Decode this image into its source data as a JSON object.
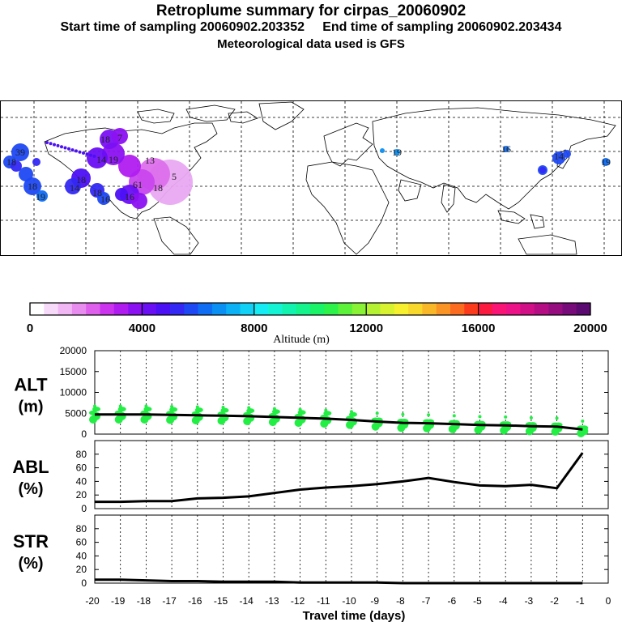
{
  "header": {
    "title": "Retroplume summary for cirpas_20060902",
    "times": "Start time of sampling 20060902.203352     End time of sampling 20060902.203434",
    "met": "Meteorological data used is GFS"
  },
  "colorbar": {
    "ticks": [
      "0",
      "4000",
      "8000",
      "12000",
      "16000",
      "20000"
    ],
    "label": "Altitude (m)",
    "colors": [
      "#ffffff",
      "#f7d9f9",
      "#f1b6f4",
      "#e88cf0",
      "#dd5fec",
      "#cc33ee",
      "#b01cf0",
      "#8c11f2",
      "#6a0ef4",
      "#4c10f5",
      "#3328f4",
      "#1e48f3",
      "#0e6df2",
      "#0a8ff3",
      "#0bb1f4",
      "#11d2f6",
      "#16ecf4",
      "#14f4d4",
      "#12f3b0",
      "#14f38c",
      "#1af268",
      "#2df24a",
      "#5cf23a",
      "#8af235",
      "#b4f232",
      "#d8f230",
      "#f6f02e",
      "#f8d82b",
      "#f9b828",
      "#fa9424",
      "#fb6c20",
      "#fc3a1c",
      "#fb1a40",
      "#fa1476",
      "#ec1287",
      "#d10f86",
      "#b50e84",
      "#960d80",
      "#770b7a",
      "#5a0a70"
    ]
  },
  "map": {
    "labels": [
      "39",
      "18",
      "18",
      "7",
      "18",
      "13",
      "61",
      "5",
      "18",
      "14",
      "18",
      "14",
      "19",
      "18",
      "19",
      "16",
      "16",
      "19",
      "19",
      "14",
      "16"
    ]
  },
  "chart_data": [
    {
      "type": "line",
      "name": "ALT",
      "ylabel": "ALT",
      "yunit": "(m)",
      "ylim": [
        0,
        20000
      ],
      "yticks": [
        "20000",
        "15000",
        "10000",
        "5000",
        "0"
      ],
      "x": [
        -20,
        -19,
        -18,
        -17,
        -16,
        -15,
        -14,
        -13,
        -12,
        -11,
        -10,
        -9,
        -8,
        -7,
        -6,
        -5,
        -4,
        -3,
        -2,
        -1
      ],
      "values": [
        4700,
        4700,
        4700,
        4600,
        4500,
        4400,
        4300,
        4100,
        3900,
        3700,
        3400,
        3000,
        2700,
        2600,
        2400,
        2200,
        2100,
        1900,
        1800,
        1100
      ],
      "scatter_color": "#22ee44"
    },
    {
      "type": "line",
      "name": "ABL",
      "ylabel": "ABL",
      "yunit": "(%)",
      "ylim": [
        0,
        100
      ],
      "yticks": [
        "80",
        "60",
        "40",
        "20",
        "0"
      ],
      "x": [
        -20,
        -19,
        -18,
        -17,
        -16,
        -15,
        -14,
        -13,
        -12,
        -11,
        -10,
        -9,
        -8,
        -7,
        -6,
        -5,
        -4,
        -3,
        -2,
        -1
      ],
      "values": [
        10,
        10,
        11,
        11,
        15,
        16,
        18,
        23,
        28,
        31,
        33,
        36,
        40,
        45,
        39,
        34,
        33,
        35,
        30,
        82
      ]
    },
    {
      "type": "line",
      "name": "STR",
      "ylabel": "STR",
      "yunit": "(%)",
      "ylim": [
        0,
        100
      ],
      "yticks": [
        "80",
        "60",
        "40",
        "20",
        "0"
      ],
      "x": [
        -20,
        -19,
        -18,
        -17,
        -16,
        -15,
        -14,
        -13,
        -12,
        -11,
        -10,
        -9,
        -8,
        -7,
        -6,
        -5,
        -4,
        -3,
        -2,
        -1
      ],
      "values": [
        5,
        5,
        4,
        3,
        3,
        2,
        2,
        2,
        1,
        1,
        1,
        1,
        0,
        0,
        0,
        0,
        0,
        0,
        0,
        0
      ]
    }
  ],
  "xaxis": {
    "ticks": [
      "-20",
      "-19",
      "-18",
      "-17",
      "-16",
      "-15",
      "-14",
      "-13",
      "-12",
      "-11",
      "-10",
      "-9",
      "-8",
      "-7",
      "-6",
      "-5",
      "-4",
      "-3",
      "-2",
      "-1",
      "0"
    ],
    "label": "Travel time (days)"
  }
}
